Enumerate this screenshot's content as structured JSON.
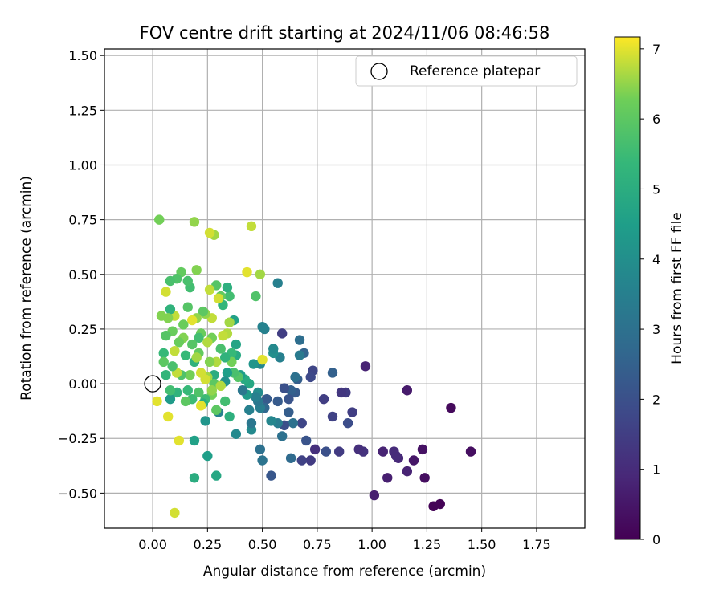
{
  "chart_data": {
    "type": "scatter",
    "title": "FOV centre drift starting at 2024/11/06 08:46:58",
    "xlabel": "Angular distance from reference (arcmin)",
    "ylabel": "Rotation from reference (arcmin)",
    "xlim": [
      -0.22,
      1.97
    ],
    "ylim": [
      -0.66,
      1.53
    ],
    "xticks": [
      0.0,
      0.25,
      0.5,
      0.75,
      1.0,
      1.25,
      1.5,
      1.75
    ],
    "yticks": [
      -0.5,
      -0.25,
      0.0,
      0.25,
      0.5,
      0.75,
      1.0,
      1.25,
      1.5
    ],
    "xtick_labels": [
      "0.00",
      "0.25",
      "0.50",
      "0.75",
      "1.00",
      "1.25",
      "1.50",
      "1.75"
    ],
    "ytick_labels": [
      "−0.50",
      "−0.25",
      "0.00",
      "0.25",
      "0.50",
      "0.75",
      "1.00",
      "1.25",
      "1.50"
    ],
    "grid": true,
    "colormap": "viridis",
    "colorbar": {
      "label": "Hours from first FF file",
      "range": [
        0,
        7.17
      ],
      "ticks": [
        0,
        1,
        2,
        3,
        4,
        5,
        6,
        7
      ],
      "tick_labels": [
        "0",
        "1",
        "2",
        "3",
        "4",
        "5",
        "6",
        "7"
      ]
    },
    "legend": {
      "position": "top-right",
      "entries": [
        {
          "label": "Reference platepar",
          "marker": "open-circle"
        }
      ]
    },
    "reference_point": {
      "x": 0.0,
      "y": 0.0
    },
    "points": [
      [
        1.45,
        -0.31,
        0.3
      ],
      [
        1.36,
        -0.11,
        0.2
      ],
      [
        1.31,
        -0.55,
        0.05
      ],
      [
        1.28,
        -0.56,
        0.05
      ],
      [
        1.24,
        -0.43,
        0.3
      ],
      [
        1.23,
        -0.3,
        0.4
      ],
      [
        1.19,
        -0.35,
        0.5
      ],
      [
        1.16,
        -0.4,
        0.8
      ],
      [
        1.16,
        -0.03,
        0.6
      ],
      [
        1.12,
        -0.34,
        0.9
      ],
      [
        1.11,
        -0.33,
        1.0
      ],
      [
        1.1,
        -0.31,
        1.0
      ],
      [
        1.07,
        -0.43,
        0.7
      ],
      [
        1.05,
        -0.31,
        0.8
      ],
      [
        1.01,
        -0.51,
        0.7
      ],
      [
        0.97,
        0.08,
        0.8
      ],
      [
        0.96,
        -0.31,
        1.2
      ],
      [
        0.94,
        -0.3,
        1.1
      ],
      [
        0.91,
        -0.13,
        1.5
      ],
      [
        0.89,
        -0.18,
        1.9
      ],
      [
        0.88,
        -0.04,
        1.4
      ],
      [
        0.86,
        -0.04,
        1.3
      ],
      [
        0.85,
        -0.31,
        1.4
      ],
      [
        0.82,
        -0.15,
        1.6
      ],
      [
        0.82,
        0.05,
        2.5
      ],
      [
        0.79,
        -0.31,
        2.0
      ],
      [
        0.78,
        -0.07,
        1.5
      ],
      [
        0.74,
        -0.3,
        1.1
      ],
      [
        0.73,
        0.06,
        1.7
      ],
      [
        0.72,
        0.03,
        1.8
      ],
      [
        0.72,
        -0.35,
        1.4
      ],
      [
        0.7,
        -0.26,
        2.1
      ],
      [
        0.69,
        0.14,
        2.6
      ],
      [
        0.68,
        -0.35,
        1.6
      ],
      [
        0.68,
        -0.18,
        1.7
      ],
      [
        0.67,
        0.13,
        3.3
      ],
      [
        0.67,
        0.2,
        2.9
      ],
      [
        0.66,
        0.02,
        2.4
      ],
      [
        0.65,
        0.03,
        3.0
      ],
      [
        0.65,
        -0.04,
        2.3
      ],
      [
        0.64,
        -0.18,
        3.0
      ],
      [
        0.63,
        -0.03,
        2.5
      ],
      [
        0.63,
        -0.34,
        2.8
      ],
      [
        0.62,
        -0.07,
        2.1
      ],
      [
        0.62,
        -0.13,
        2.4
      ],
      [
        0.6,
        -0.02,
        2.0
      ],
      [
        0.6,
        -0.19,
        2.0
      ],
      [
        0.59,
        0.23,
        1.5
      ],
      [
        0.59,
        -0.24,
        3.0
      ],
      [
        0.58,
        0.12,
        3.5
      ],
      [
        0.57,
        -0.08,
        2.3
      ],
      [
        0.57,
        -0.18,
        3.4
      ],
      [
        0.57,
        0.46,
        3.5
      ],
      [
        0.55,
        0.14,
        4.0
      ],
      [
        0.55,
        0.16,
        3.8
      ],
      [
        0.54,
        -0.42,
        2.2
      ],
      [
        0.54,
        -0.17,
        3.7
      ],
      [
        0.52,
        -0.07,
        2.3
      ],
      [
        0.51,
        -0.11,
        2.7
      ],
      [
        0.51,
        0.25,
        3.5
      ],
      [
        0.5,
        0.26,
        3.6
      ],
      [
        0.5,
        -0.35,
        3.1
      ],
      [
        0.49,
        -0.11,
        3.4
      ],
      [
        0.49,
        -0.3,
        3.0
      ],
      [
        0.49,
        0.09,
        3.7
      ],
      [
        0.48,
        -0.08,
        3.2
      ],
      [
        0.48,
        -0.04,
        3.9
      ],
      [
        0.47,
        -0.06,
        3.5
      ],
      [
        0.47,
        0.4,
        5.8
      ],
      [
        0.46,
        0.09,
        4.2
      ],
      [
        0.45,
        -0.21,
        3.8
      ],
      [
        0.45,
        -0.18,
        3.2
      ],
      [
        0.44,
        -0.12,
        3.5
      ],
      [
        0.44,
        0.0,
        4.8
      ],
      [
        0.43,
        -0.05,
        4.4
      ],
      [
        0.42,
        0.02,
        4.9
      ],
      [
        0.41,
        -0.03,
        3.2
      ],
      [
        0.4,
        0.04,
        4.5
      ],
      [
        0.39,
        0.03,
        5.9
      ],
      [
        0.38,
        0.13,
        4.9
      ],
      [
        0.38,
        0.18,
        4.7
      ],
      [
        0.38,
        -0.23,
        3.8
      ],
      [
        0.37,
        0.05,
        5.7
      ],
      [
        0.37,
        0.29,
        4.6
      ],
      [
        0.36,
        0.14,
        5.4
      ],
      [
        0.36,
        0.1,
        6.3
      ],
      [
        0.35,
        -0.15,
        5.1
      ],
      [
        0.35,
        0.28,
        6.6
      ],
      [
        0.35,
        0.4,
        5.6
      ],
      [
        0.34,
        0.44,
        5.1
      ],
      [
        0.34,
        0.05,
        4.5
      ],
      [
        0.34,
        0.23,
        6.7
      ],
      [
        0.33,
        -0.08,
        5.6
      ],
      [
        0.33,
        0.12,
        5.2
      ],
      [
        0.33,
        0.01,
        4.1
      ],
      [
        0.32,
        0.36,
        5.3
      ],
      [
        0.32,
        0.22,
        6.8
      ],
      [
        0.31,
        0.4,
        6.1
      ],
      [
        0.31,
        0.16,
        5.7
      ],
      [
        0.3,
        0.39,
        6.9
      ],
      [
        0.3,
        -0.13,
        3.6
      ],
      [
        0.29,
        0.45,
        5.9
      ],
      [
        0.29,
        0.1,
        6.7
      ],
      [
        0.29,
        -0.12,
        6.0
      ],
      [
        0.29,
        -0.42,
        4.8
      ],
      [
        0.28,
        0.04,
        5.0
      ],
      [
        0.28,
        0.0,
        6.0
      ],
      [
        0.28,
        0.68,
        6.6
      ],
      [
        0.27,
        -0.05,
        6.3
      ],
      [
        0.27,
        0.3,
        6.8
      ],
      [
        0.27,
        0.21,
        6.3
      ],
      [
        0.26,
        0.69,
        6.9
      ],
      [
        0.26,
        0.43,
        6.8
      ],
      [
        0.26,
        0.1,
        6.4
      ],
      [
        0.25,
        0.19,
        6.7
      ],
      [
        0.25,
        -0.33,
        4.5
      ],
      [
        0.25,
        0.03,
        6.6
      ],
      [
        0.24,
        0.32,
        6.5
      ],
      [
        0.24,
        -0.07,
        5.5
      ],
      [
        0.24,
        -0.17,
        4.2
      ],
      [
        0.23,
        -0.09,
        5.0
      ],
      [
        0.23,
        0.33,
        6.0
      ],
      [
        0.22,
        0.05,
        6.9
      ],
      [
        0.22,
        0.23,
        6.2
      ],
      [
        0.22,
        -0.1,
        7.0
      ],
      [
        0.21,
        0.21,
        5.6
      ],
      [
        0.21,
        -0.04,
        5.8
      ],
      [
        0.21,
        0.14,
        6.1
      ],
      [
        0.2,
        0.52,
        6.4
      ],
      [
        0.2,
        0.3,
        6.5
      ],
      [
        0.19,
        0.74,
        6.5
      ],
      [
        0.19,
        -0.26,
        4.6
      ],
      [
        0.19,
        -0.43,
        5.0
      ],
      [
        0.19,
        0.1,
        5.2
      ],
      [
        0.18,
        0.18,
        5.9
      ],
      [
        0.18,
        0.29,
        7.0
      ],
      [
        0.18,
        -0.07,
        5.5
      ],
      [
        0.17,
        0.44,
        5.6
      ],
      [
        0.17,
        0.04,
        6.3
      ],
      [
        0.16,
        0.47,
        5.7
      ],
      [
        0.16,
        -0.03,
        5.4
      ],
      [
        0.16,
        0.35,
        5.9
      ],
      [
        0.15,
        0.13,
        5.4
      ],
      [
        0.15,
        -0.08,
        6.0
      ],
      [
        0.14,
        0.27,
        6.2
      ],
      [
        0.14,
        0.21,
        6.4
      ],
      [
        0.13,
        0.51,
        6.1
      ],
      [
        0.13,
        0.04,
        5.8
      ],
      [
        0.12,
        -0.26,
        7.0
      ],
      [
        0.12,
        0.19,
        6.2
      ],
      [
        0.11,
        0.48,
        5.8
      ],
      [
        0.11,
        0.05,
        6.8
      ],
      [
        0.11,
        -0.04,
        5.2
      ],
      [
        0.1,
        0.31,
        6.8
      ],
      [
        0.1,
        0.15,
        6.8
      ],
      [
        0.1,
        -0.59,
        6.9
      ],
      [
        0.09,
        0.24,
        6.2
      ],
      [
        0.09,
        0.08,
        5.7
      ],
      [
        0.08,
        0.47,
        5.7
      ],
      [
        0.08,
        0.34,
        5.2
      ],
      [
        0.08,
        -0.07,
        4.4
      ],
      [
        0.08,
        -0.03,
        5.6
      ],
      [
        0.07,
        0.3,
        6.4
      ],
      [
        0.07,
        -0.15,
        7.0
      ],
      [
        0.06,
        0.22,
        5.9
      ],
      [
        0.06,
        0.42,
        6.9
      ],
      [
        0.06,
        0.04,
        5.3
      ],
      [
        0.05,
        0.14,
        5.4
      ],
      [
        0.05,
        0.1,
        6.0
      ],
      [
        0.04,
        0.31,
        6.4
      ],
      [
        0.03,
        0.75,
        6.3
      ],
      [
        0.02,
        -0.08,
        7.0
      ],
      [
        0.43,
        0.51,
        7.0
      ],
      [
        0.45,
        0.72,
        6.8
      ],
      [
        0.49,
        0.5,
        6.6
      ],
      [
        0.5,
        0.11,
        7.0
      ],
      [
        0.2,
        0.12,
        6.6
      ],
      [
        0.24,
        0.02,
        6.9
      ],
      [
        0.31,
        -0.01,
        6.7
      ],
      [
        0.27,
        -0.03,
        6.5
      ]
    ]
  }
}
